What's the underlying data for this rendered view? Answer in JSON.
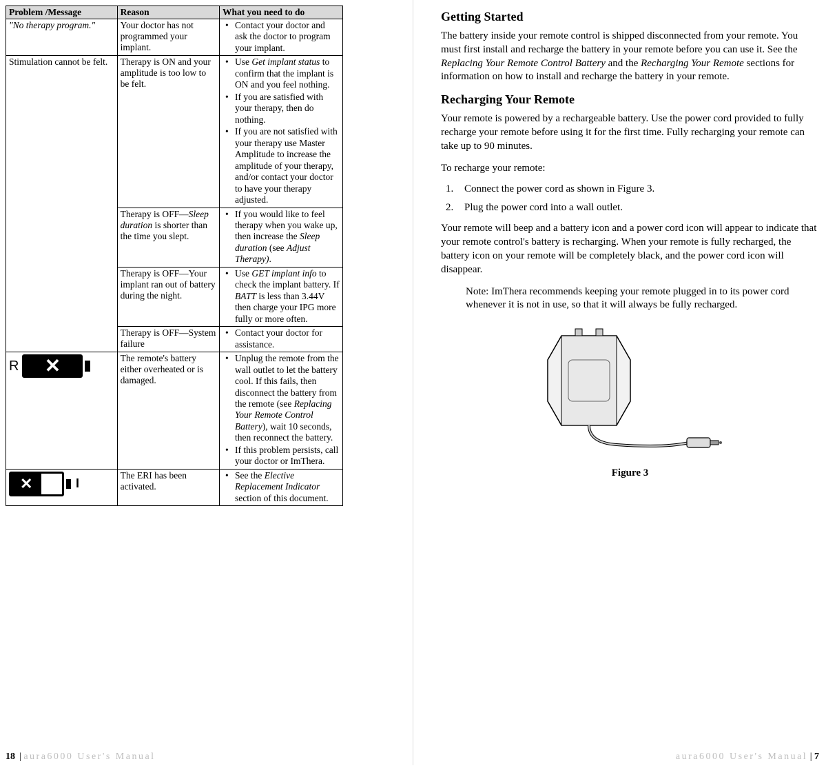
{
  "left": {
    "headers": {
      "c1": "Problem /Message",
      "c2": "Reason",
      "c3": "What you need to do"
    },
    "rows": [
      {
        "problem": "\"No therapy program.\"",
        "problem_italic": true,
        "reason": "Your doctor has not programmed your implant.",
        "actions": [
          "Contact your doctor and ask the doctor to program your implant."
        ]
      },
      {
        "problem": "Stimulation cannot be felt.",
        "rowspan": 4,
        "reason": "Therapy is ON and your amplitude is too low to be felt.",
        "actions": [
          "Use <em>Get implant status</em> to confirm that the implant is ON and you feel nothing.",
          "If you are satisfied with your therapy, then do nothing.",
          "If you are not satisfied with your therapy use Master Amplitude to increase the amplitude of your therapy, and/or contact your doctor to have your therapy adjusted."
        ]
      },
      {
        "reason": "Therapy is OFF—<em>Sleep duration</em> is shorter than the time you slept.",
        "actions": [
          "If you would like to feel therapy when you wake up, then increase the <em>Sleep duration</em> (see <em>Adjust Therapy)</em>."
        ]
      },
      {
        "reason": "Therapy is OFF—Your implant ran out of battery during the night.",
        "actions": [
          "Use <em>GET implant info</em> to check the implant battery.  If <em>BATT</em> is less than 3.44V then charge your IPG more fully or more often."
        ]
      },
      {
        "reason": "Therapy is OFF—System failure",
        "actions": [
          "Contact your doctor for assistance."
        ]
      },
      {
        "problem_icon": "remote-battery-icon",
        "reason": "The remote's battery either overheated or is damaged.",
        "actions": [
          "Unplug the remote from the wall outlet to let the battery cool.  If this fails, then disconnect the battery from the remote (see <em>Replacing Your Remote Control Battery</em>), wait 10 seconds, then reconnect the battery.",
          "If this problem persists, call your doctor or ImThera."
        ]
      },
      {
        "problem_icon": "eri-battery-icon",
        "reason": "The ERI has been activated.",
        "actions": [
          "See the <em>Elective Replacement Indicator</em> section of this document."
        ]
      }
    ],
    "footer_page": "18",
    "footer_text": "aura6000 User's Manual"
  },
  "right": {
    "h1": "Getting Started",
    "p1": "The battery inside your remote control is shipped disconnected from your remote.  You must first install and recharge the battery in your remote before you can use it.  See the <em>Replacing Your Remote Control Battery</em> and the <em>Recharging Your Remote</em> sections for information on how to install and recharge the battery in your remote.",
    "h2": "Recharging Your Remote",
    "p2": "Your remote is powered by a rechargeable battery.  Use the power cord provided to fully recharge your remote before using it for the first time.  Fully recharging your remote can take up to 90 minutes.",
    "p3": "To recharge your remote:",
    "steps": [
      "Connect the power cord as shown in Figure 3.",
      "Plug the power cord into a wall outlet."
    ],
    "p4": "Your remote will beep and a battery icon and a power cord icon will appear to indicate that your remote control's battery is recharging.  When your remote is fully recharged, the battery icon on your remote will be completely black, and the power cord icon will disappear.",
    "note": "Note:  ImThera recommends keeping your remote plugged in to its power cord whenever it is not in use, so that it will always be fully recharged.",
    "fig_caption": "Figure 3",
    "footer_text": "aura6000 User's Manual",
    "footer_page": "7"
  }
}
